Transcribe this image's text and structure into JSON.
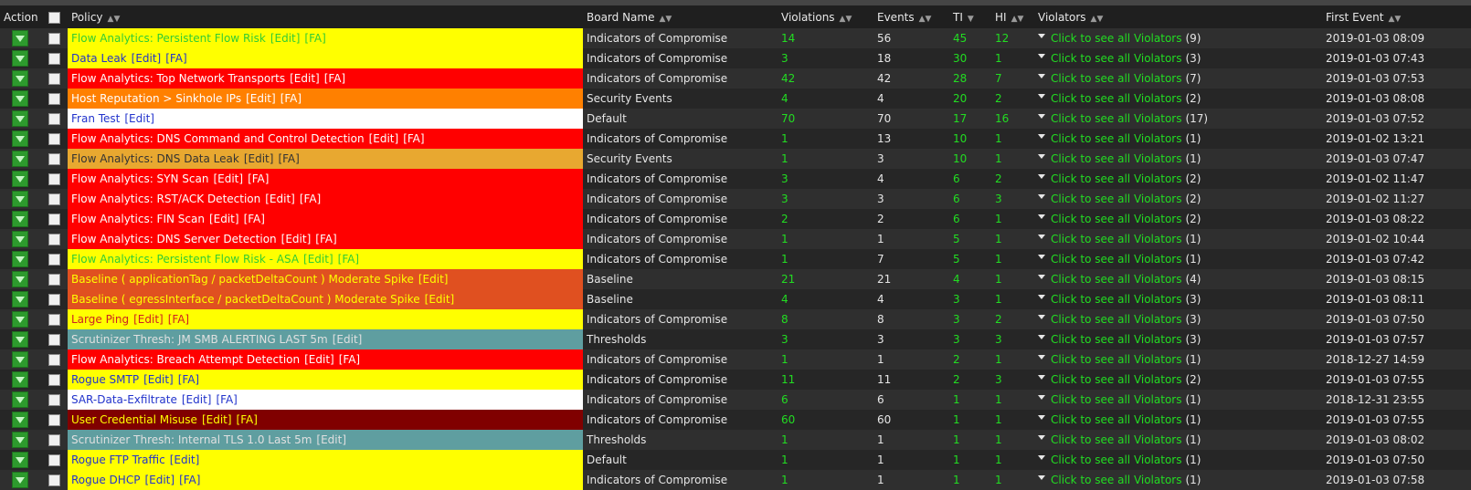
{
  "columns": {
    "action": "Action",
    "policy": "Policy",
    "board": "Board Name",
    "violations": "Violations",
    "events": "Events",
    "ti": "TI",
    "hi": "HI",
    "violators": "Violators",
    "first_event": "First Event"
  },
  "violators_link_text": "Click to see all Violators",
  "rows": [
    {
      "policy": "Flow Analytics: Persistent Flow Risk",
      "links": [
        "[Edit]",
        "[FA]"
      ],
      "bg": "#ffff00",
      "fg": "#33cc33",
      "board": "Indicators of Compromise",
      "violations": "14",
      "events": "56",
      "ti": "45",
      "hi": "12",
      "violators_count": "(9)",
      "first_event": "2019-01-03 08:09"
    },
    {
      "policy": "Data Leak",
      "links": [
        "[Edit]",
        "[FA]"
      ],
      "bg": "#ffff00",
      "fg": "#2233cc",
      "board": "Indicators of Compromise",
      "violations": "3",
      "events": "18",
      "ti": "30",
      "hi": "1",
      "violators_count": "(3)",
      "first_event": "2019-01-03 07:43"
    },
    {
      "policy": "Flow Analytics: Top Network Transports",
      "links": [
        "[Edit]",
        "[FA]"
      ],
      "bg": "#ff0000",
      "fg": "#ffffff",
      "board": "Indicators of Compromise",
      "violations": "42",
      "events": "42",
      "ti": "28",
      "hi": "7",
      "violators_count": "(7)",
      "first_event": "2019-01-03 07:53"
    },
    {
      "policy": "Host Reputation > Sinkhole IPs",
      "links": [
        "[Edit]",
        "[FA]"
      ],
      "bg": "#ff8000",
      "fg": "#ffffff",
      "board": "Security Events",
      "violations": "4",
      "events": "4",
      "ti": "20",
      "hi": "2",
      "violators_count": "(2)",
      "first_event": "2019-01-03 08:08"
    },
    {
      "policy": "Fran Test",
      "links": [
        "[Edit]"
      ],
      "bg": "#ffffff",
      "fg": "#2233cc",
      "board": "Default",
      "violations": "70",
      "events": "70",
      "ti": "17",
      "hi": "16",
      "violators_count": "(17)",
      "first_event": "2019-01-03 07:52"
    },
    {
      "policy": "Flow Analytics: DNS Command and Control Detection",
      "links": [
        "[Edit]",
        "[FA]"
      ],
      "bg": "#ff0000",
      "fg": "#ffffff",
      "board": "Indicators of Compromise",
      "violations": "1",
      "events": "13",
      "ti": "10",
      "hi": "1",
      "violators_count": "(1)",
      "first_event": "2019-01-02 13:21"
    },
    {
      "policy": "Flow Analytics: DNS Data Leak",
      "links": [
        "[Edit]",
        "[FA]"
      ],
      "bg": "#e8a830",
      "fg": "#333333",
      "board": "Security Events",
      "violations": "1",
      "events": "3",
      "ti": "10",
      "hi": "1",
      "violators_count": "(1)",
      "first_event": "2019-01-03 07:47"
    },
    {
      "policy": "Flow Analytics: SYN Scan",
      "links": [
        "[Edit]",
        "[FA]"
      ],
      "bg": "#ff0000",
      "fg": "#ffffff",
      "board": "Indicators of Compromise",
      "violations": "3",
      "events": "4",
      "ti": "6",
      "hi": "2",
      "violators_count": "(2)",
      "first_event": "2019-01-02 11:47"
    },
    {
      "policy": "Flow Analytics: RST/ACK Detection",
      "links": [
        "[Edit]",
        "[FA]"
      ],
      "bg": "#ff0000",
      "fg": "#ffffff",
      "board": "Indicators of Compromise",
      "violations": "3",
      "events": "3",
      "ti": "6",
      "hi": "3",
      "violators_count": "(2)",
      "first_event": "2019-01-02 11:27"
    },
    {
      "policy": "Flow Analytics: FIN Scan",
      "links": [
        "[Edit]",
        "[FA]"
      ],
      "bg": "#ff0000",
      "fg": "#ffffff",
      "board": "Indicators of Compromise",
      "violations": "2",
      "events": "2",
      "ti": "6",
      "hi": "1",
      "violators_count": "(2)",
      "first_event": "2019-01-03 08:22"
    },
    {
      "policy": "Flow Analytics: DNS Server Detection",
      "links": [
        "[Edit]",
        "[FA]"
      ],
      "bg": "#ff0000",
      "fg": "#ffffff",
      "board": "Indicators of Compromise",
      "violations": "1",
      "events": "1",
      "ti": "5",
      "hi": "1",
      "violators_count": "(1)",
      "first_event": "2019-01-02 10:44"
    },
    {
      "policy": "Flow Analytics: Persistent Flow Risk - ASA",
      "links": [
        "[Edit]",
        "[FA]"
      ],
      "bg": "#ffff00",
      "fg": "#33cc33",
      "board": "Indicators of Compromise",
      "violations": "1",
      "events": "7",
      "ti": "5",
      "hi": "1",
      "violators_count": "(1)",
      "first_event": "2019-01-03 07:42"
    },
    {
      "policy": "Baseline ( applicationTag / packetDeltaCount ) Moderate Spike",
      "links": [
        "[Edit]"
      ],
      "bg": "#e05020",
      "fg": "#ffff00",
      "board": "Baseline",
      "violations": "21",
      "events": "21",
      "ti": "4",
      "hi": "1",
      "violators_count": "(4)",
      "first_event": "2019-01-03 08:15"
    },
    {
      "policy": "Baseline ( egressInterface / packetDeltaCount ) Moderate Spike",
      "links": [
        "[Edit]"
      ],
      "bg": "#e05020",
      "fg": "#ffff00",
      "board": "Baseline",
      "violations": "4",
      "events": "4",
      "ti": "3",
      "hi": "1",
      "violators_count": "(3)",
      "first_event": "2019-01-03 08:11"
    },
    {
      "policy": "Large Ping",
      "links": [
        "[Edit]",
        "[FA]"
      ],
      "bg": "#ffff00",
      "fg": "#cc2222",
      "board": "Indicators of Compromise",
      "violations": "8",
      "events": "8",
      "ti": "3",
      "hi": "2",
      "violators_count": "(3)",
      "first_event": "2019-01-03 07:50"
    },
    {
      "policy": "Scrutinizer Thresh: JM SMB ALERTING LAST 5m",
      "links": [
        "[Edit]"
      ],
      "bg": "#5f9ea0",
      "fg": "#e0e0e0",
      "board": "Thresholds",
      "violations": "3",
      "events": "3",
      "ti": "3",
      "hi": "3",
      "violators_count": "(3)",
      "first_event": "2019-01-03 07:57"
    },
    {
      "policy": "Flow Analytics: Breach Attempt Detection",
      "links": [
        "[Edit]",
        "[FA]"
      ],
      "bg": "#ff0000",
      "fg": "#ffffff",
      "board": "Indicators of Compromise",
      "violations": "1",
      "events": "1",
      "ti": "2",
      "hi": "1",
      "violators_count": "(1)",
      "first_event": "2018-12-27 14:59"
    },
    {
      "policy": "Rogue SMTP",
      "links": [
        "[Edit]",
        "[FA]"
      ],
      "bg": "#ffff00",
      "fg": "#2233cc",
      "board": "Indicators of Compromise",
      "violations": "11",
      "events": "11",
      "ti": "2",
      "hi": "3",
      "violators_count": "(2)",
      "first_event": "2019-01-03 07:55"
    },
    {
      "policy": "SAR-Data-Exfiltrate",
      "links": [
        "[Edit]",
        "[FA]"
      ],
      "bg": "#ffffff",
      "fg": "#2233cc",
      "board": "Indicators of Compromise",
      "violations": "6",
      "events": "6",
      "ti": "1",
      "hi": "1",
      "violators_count": "(1)",
      "first_event": "2018-12-31 23:55"
    },
    {
      "policy": "User Credential Misuse",
      "links": [
        "[Edit]",
        "[FA]"
      ],
      "bg": "#800000",
      "fg": "#ffff00",
      "board": "Indicators of Compromise",
      "violations": "60",
      "events": "60",
      "ti": "1",
      "hi": "1",
      "violators_count": "(1)",
      "first_event": "2019-01-03 07:55"
    },
    {
      "policy": "Scrutinizer Thresh: Internal TLS 1.0 Last 5m",
      "links": [
        "[Edit]"
      ],
      "bg": "#5f9ea0",
      "fg": "#e0e0e0",
      "board": "Thresholds",
      "violations": "1",
      "events": "1",
      "ti": "1",
      "hi": "1",
      "violators_count": "(1)",
      "first_event": "2019-01-03 08:02"
    },
    {
      "policy": "Rogue FTP Traffic",
      "links": [
        "[Edit]"
      ],
      "bg": "#ffff00",
      "fg": "#2233cc",
      "board": "Default",
      "violations": "1",
      "events": "1",
      "ti": "1",
      "hi": "1",
      "violators_count": "(1)",
      "first_event": "2019-01-03 07:50"
    },
    {
      "policy": "Rogue DHCP",
      "links": [
        "[Edit]",
        "[FA]"
      ],
      "bg": "#ffff00",
      "fg": "#2233cc",
      "board": "Indicators of Compromise",
      "violations": "1",
      "events": "1",
      "ti": "1",
      "hi": "1",
      "violators_count": "(1)",
      "first_event": "2019-01-03 07:58"
    }
  ]
}
